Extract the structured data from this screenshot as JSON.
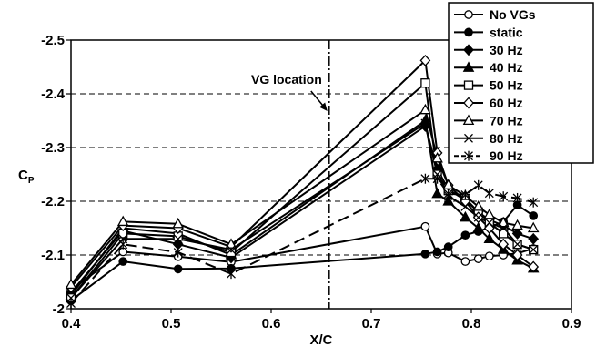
{
  "chart_data": {
    "type": "line",
    "xlabel": "X/C",
    "ylabel": "C",
    "ylabel_subscript": "P",
    "xlim": [
      0.4,
      0.9
    ],
    "ylim": [
      -2.0,
      -2.5
    ],
    "y_inverted": true,
    "x_ticks": [
      0.4,
      0.5,
      0.6,
      0.7,
      0.8,
      0.9
    ],
    "x_tick_labels": [
      "0.4",
      "0.5",
      "0.6",
      "0.7",
      "0.8",
      "0.9"
    ],
    "y_ticks": [
      -2.0,
      -2.1,
      -2.2,
      -2.3,
      -2.4,
      -2.5
    ],
    "y_tick_labels": [
      "-2",
      "-2.1",
      "-2.2",
      "-2.3",
      "-2.4",
      "-2.5"
    ],
    "grid": "horizontal dashed",
    "legend_position": "top-right",
    "annotation": {
      "text": "VG location",
      "x": 0.658
    },
    "series": [
      {
        "name": "No VGs",
        "marker": "circle-open",
        "dash": "solid",
        "x": [
          0.4,
          0.452,
          0.507,
          0.56,
          0.754,
          0.766,
          0.777,
          0.794,
          0.807,
          0.818,
          0.832,
          0.846,
          0.862
        ],
        "y": [
          -2.035,
          -2.106,
          -2.097,
          -2.087,
          -2.153,
          -2.102,
          -2.104,
          -2.088,
          -2.093,
          -2.098,
          -2.1,
          -2.103,
          -2.112
        ]
      },
      {
        "name": "static",
        "marker": "circle-filled",
        "dash": "solid",
        "x": [
          0.4,
          0.452,
          0.507,
          0.56,
          0.754,
          0.766,
          0.777,
          0.794,
          0.807,
          0.818,
          0.832,
          0.846,
          0.862
        ],
        "y": [
          -2.015,
          -2.088,
          -2.074,
          -2.075,
          -2.102,
          -2.106,
          -2.115,
          -2.137,
          -2.144,
          -2.151,
          -2.162,
          -2.193,
          -2.173
        ]
      },
      {
        "name": "30 Hz",
        "marker": "diamond-filled",
        "dash": "solid",
        "x": [
          0.4,
          0.452,
          0.507,
          0.56,
          0.754,
          0.766,
          0.777,
          0.794,
          0.807,
          0.818,
          0.832,
          0.846,
          0.862
        ],
        "y": [
          -2.03,
          -2.145,
          -2.12,
          -2.095,
          -2.34,
          -2.26,
          -2.222,
          -2.202,
          -2.18,
          -2.165,
          -2.155,
          -2.14,
          -2.13
        ]
      },
      {
        "name": "40 Hz",
        "marker": "triangle-filled",
        "dash": "solid",
        "x": [
          0.4,
          0.452,
          0.507,
          0.56,
          0.754,
          0.766,
          0.777,
          0.794,
          0.807,
          0.818,
          0.832,
          0.846,
          0.862
        ],
        "y": [
          -2.025,
          -2.15,
          -2.14,
          -2.1,
          -2.35,
          -2.214,
          -2.2,
          -2.17,
          -2.15,
          -2.13,
          -2.11,
          -2.09,
          -2.075
        ]
      },
      {
        "name": "50 Hz",
        "marker": "square-open",
        "dash": "solid",
        "x": [
          0.4,
          0.452,
          0.507,
          0.56,
          0.754,
          0.766,
          0.777,
          0.794,
          0.807,
          0.818,
          0.832,
          0.846,
          0.862
        ],
        "y": [
          -2.02,
          -2.14,
          -2.135,
          -2.105,
          -2.42,
          -2.25,
          -2.22,
          -2.205,
          -2.18,
          -2.16,
          -2.14,
          -2.12,
          -2.11
        ]
      },
      {
        "name": "60 Hz",
        "marker": "diamond-open",
        "dash": "solid",
        "x": [
          0.4,
          0.452,
          0.507,
          0.56,
          0.754,
          0.766,
          0.777,
          0.794,
          0.807,
          0.818,
          0.832,
          0.846,
          0.862
        ],
        "y": [
          -2.04,
          -2.155,
          -2.15,
          -2.115,
          -2.462,
          -2.29,
          -2.23,
          -2.2,
          -2.17,
          -2.15,
          -2.12,
          -2.1,
          -2.078
        ]
      },
      {
        "name": "70 Hz",
        "marker": "triangle-open",
        "dash": "solid",
        "x": [
          0.4,
          0.452,
          0.507,
          0.56,
          0.754,
          0.766,
          0.777,
          0.794,
          0.807,
          0.818,
          0.832,
          0.846,
          0.862
        ],
        "y": [
          -2.045,
          -2.162,
          -2.158,
          -2.12,
          -2.37,
          -2.28,
          -2.23,
          -2.21,
          -2.19,
          -2.175,
          -2.16,
          -2.155,
          -2.15
        ]
      },
      {
        "name": "80 Hz",
        "marker": "x",
        "dash": "solid",
        "x": [
          0.4,
          0.452,
          0.507,
          0.56,
          0.754,
          0.766,
          0.777,
          0.794,
          0.807,
          0.818,
          0.832,
          0.846,
          0.862
        ],
        "y": [
          -2.02,
          -2.13,
          -2.13,
          -2.11,
          -2.345,
          -2.25,
          -2.21,
          -2.19,
          -2.17,
          -2.16,
          -2.15,
          -2.12,
          -2.11
        ]
      },
      {
        "name": "90 Hz",
        "marker": "asterisk",
        "dash": "dashed",
        "x": [
          0.4,
          0.452,
          0.507,
          0.56,
          0.754,
          0.766,
          0.777,
          0.794,
          0.807,
          0.818,
          0.832,
          0.846,
          0.862
        ],
        "y": [
          -2.01,
          -2.12,
          -2.105,
          -2.065,
          -2.242,
          -2.242,
          -2.214,
          -2.212,
          -2.23,
          -2.215,
          -2.209,
          -2.206,
          -2.198
        ]
      }
    ]
  }
}
